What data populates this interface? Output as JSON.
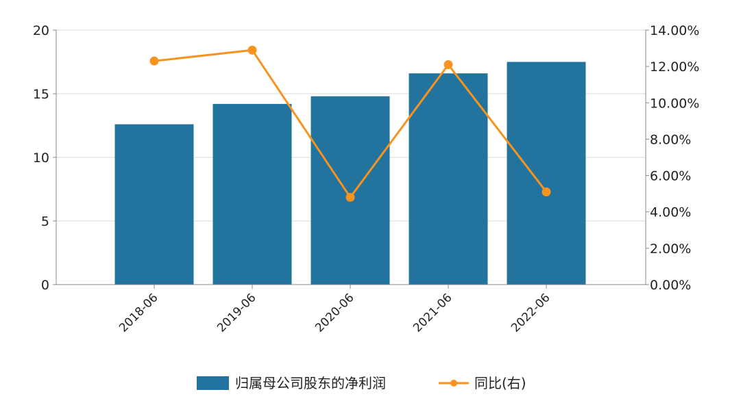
{
  "chart_data": {
    "type": "bar",
    "categories": [
      "2018-06",
      "2019-06",
      "2020-06",
      "2021-06",
      "2022-06"
    ],
    "series": [
      {
        "name": "归属母公司股东的净利润",
        "type": "bar",
        "axis": "left",
        "color": "#22749F",
        "values": [
          12.6,
          14.2,
          14.8,
          16.6,
          17.5
        ]
      },
      {
        "name": "同比(右)",
        "type": "line",
        "axis": "right",
        "color": "#F7931E",
        "values": [
          12.3,
          12.9,
          4.8,
          12.1,
          5.1
        ]
      }
    ],
    "y_left": {
      "min": 0,
      "max": 20,
      "ticks": [
        "0",
        "5",
        "10",
        "15",
        "20"
      ]
    },
    "y_right": {
      "min": 0,
      "max": 14,
      "ticks": [
        "0.00%",
        "2.00%",
        "4.00%",
        "6.00%",
        "8.00%",
        "10.00%",
        "12.00%",
        "14.00%"
      ]
    },
    "grid": true,
    "legend_position": "bottom-center"
  }
}
